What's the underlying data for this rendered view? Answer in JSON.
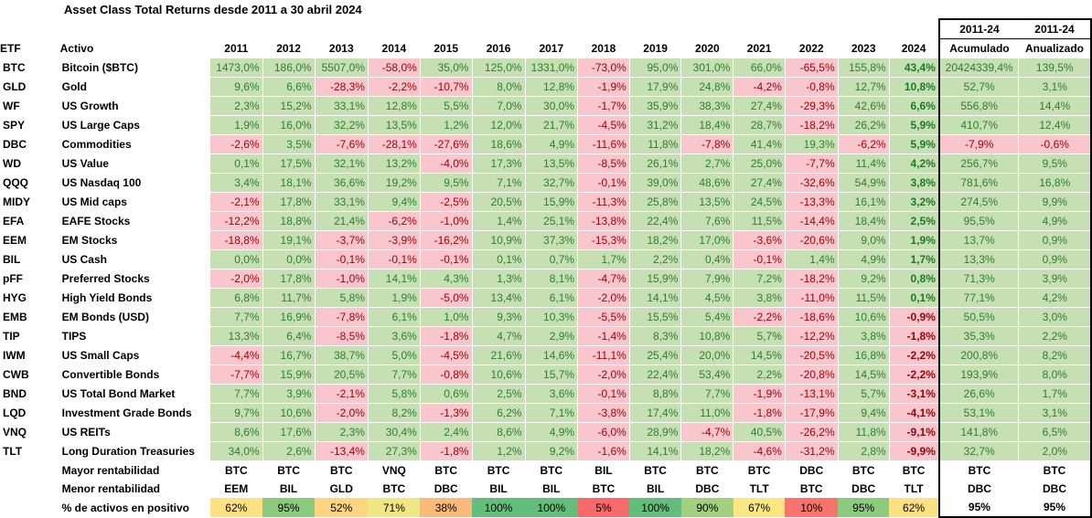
{
  "title": "Asset Class Total Returns desde 2011 a 30 abril 2024",
  "super_header": [
    "2011-24",
    "2011-24"
  ],
  "headers": {
    "etf": "ETF",
    "activo": "Activo",
    "years": [
      "2011",
      "2012",
      "2013",
      "2014",
      "2015",
      "2016",
      "2017",
      "2018",
      "2019",
      "2020",
      "2021",
      "2022",
      "2023",
      "2024"
    ],
    "acumulado": "Acumulado",
    "anualizado": "Anualizado"
  },
  "rows": [
    {
      "etf": "BTC",
      "name": "Bitcoin ($BTC)",
      "vals": [
        "1473,0%",
        "186,0%",
        "5507,0%",
        "-58,0%",
        "35,0%",
        "125,0%",
        "1331,0%",
        "-73,0%",
        "95,0%",
        "301,0%",
        "66,0%",
        "-65,5%",
        "155,8%",
        "43,4%"
      ],
      "cum": "20424339,4%",
      "ann": "139,5%"
    },
    {
      "etf": "GLD",
      "name": "Gold",
      "vals": [
        "9,6%",
        "6,6%",
        "-28,3%",
        "-2,2%",
        "-10,7%",
        "8,0%",
        "12,8%",
        "-1,9%",
        "17,9%",
        "24,8%",
        "-4,2%",
        "-0,8%",
        "12,7%",
        "10,8%"
      ],
      "cum": "52,7%",
      "ann": "3,1%"
    },
    {
      "etf": "WF",
      "name": "US Growth",
      "vals": [
        "2,3%",
        "15,2%",
        "33,1%",
        "12,8%",
        "5,5%",
        "7,0%",
        "30,0%",
        "-1,7%",
        "35,9%",
        "38,3%",
        "27,4%",
        "-29,3%",
        "42,6%",
        "6,6%"
      ],
      "cum": "556,8%",
      "ann": "14,4%"
    },
    {
      "etf": "SPY",
      "name": "US Large Caps",
      "vals": [
        "1,9%",
        "16,0%",
        "32,2%",
        "13,5%",
        "1,2%",
        "12,0%",
        "21,7%",
        "-4,5%",
        "31,2%",
        "18,4%",
        "28,7%",
        "-18,2%",
        "26,2%",
        "5,9%"
      ],
      "cum": "410,7%",
      "ann": "12,4%"
    },
    {
      "etf": "DBC",
      "name": "Commodities",
      "vals": [
        "-2,6%",
        "3,5%",
        "-7,6%",
        "-28,1%",
        "-27,6%",
        "18,6%",
        "4,9%",
        "-11,6%",
        "11,8%",
        "-7,8%",
        "41,4%",
        "19,3%",
        "-6,2%",
        "5,9%"
      ],
      "cum": "-7,9%",
      "ann": "-0,6%"
    },
    {
      "etf": "WD",
      "name": "US Value",
      "vals": [
        "0,1%",
        "17,5%",
        "32,1%",
        "13,2%",
        "-4,0%",
        "17,3%",
        "13,5%",
        "-8,5%",
        "26,1%",
        "2,7%",
        "25,0%",
        "-7,7%",
        "11,4%",
        "4,2%"
      ],
      "cum": "256,7%",
      "ann": "9,5%"
    },
    {
      "etf": "QQQ",
      "name": "US Nasdaq 100",
      "vals": [
        "3,4%",
        "18,1%",
        "36,6%",
        "19,2%",
        "9,5%",
        "7,1%",
        "32,7%",
        "-0,1%",
        "39,0%",
        "48,6%",
        "27,4%",
        "-32,6%",
        "54,9%",
        "3,8%"
      ],
      "cum": "781,6%",
      "ann": "16,8%"
    },
    {
      "etf": "MIDY",
      "name": "US Mid caps",
      "vals": [
        "-2,1%",
        "17,8%",
        "33,1%",
        "9,4%",
        "-2,5%",
        "20,5%",
        "15,9%",
        "-11,3%",
        "25,8%",
        "13,5%",
        "24,5%",
        "-13,3%",
        "16,1%",
        "3,2%"
      ],
      "cum": "274,5%",
      "ann": "9,9%"
    },
    {
      "etf": "EFA",
      "name": "EAFE Stocks",
      "vals": [
        "-12,2%",
        "18,8%",
        "21,4%",
        "-6,2%",
        "-1,0%",
        "1,4%",
        "25,1%",
        "-13,8%",
        "22,4%",
        "7,6%",
        "11,5%",
        "-14,4%",
        "18,4%",
        "2,5%"
      ],
      "cum": "95,5%",
      "ann": "4,9%"
    },
    {
      "etf": "EEM",
      "name": "EM Stocks",
      "vals": [
        "-18,8%",
        "19,1%",
        "-3,7%",
        "-3,9%",
        "-16,2%",
        "10,9%",
        "37,3%",
        "-15,3%",
        "18,2%",
        "17,0%",
        "-3,6%",
        "-20,6%",
        "9,0%",
        "1,9%"
      ],
      "cum": "13,7%",
      "ann": "0,9%"
    },
    {
      "etf": "BIL",
      "name": "US Cash",
      "vals": [
        "0,0%",
        "0,0%",
        "-0,1%",
        "-0,1%",
        "-0,1%",
        "0,1%",
        "0,7%",
        "1,7%",
        "2,2%",
        "0,4%",
        "-0,1%",
        "1,4%",
        "4,9%",
        "1,7%"
      ],
      "cum": "13,3%",
      "ann": "0,9%"
    },
    {
      "etf": "pFF",
      "name": "Preferred Stocks",
      "vals": [
        "-2,0%",
        "17,8%",
        "-1,0%",
        "14,1%",
        "4,3%",
        "1,3%",
        "8,1%",
        "-4,7%",
        "15,9%",
        "7,9%",
        "7,2%",
        "-18,2%",
        "9,2%",
        "0,8%"
      ],
      "cum": "71,3%",
      "ann": "3,9%"
    },
    {
      "etf": "HYG",
      "name": "High Yield Bonds",
      "vals": [
        "6,8%",
        "11,7%",
        "5,8%",
        "1,9%",
        "-5,0%",
        "13,4%",
        "6,1%",
        "-2,0%",
        "14,1%",
        "4,5%",
        "3,8%",
        "-11,0%",
        "11,5%",
        "0,1%"
      ],
      "cum": "77,1%",
      "ann": "4,2%"
    },
    {
      "etf": "EMB",
      "name": "EM Bonds (USD)",
      "vals": [
        "7,7%",
        "16,9%",
        "-7,8%",
        "6,1%",
        "1,0%",
        "9,3%",
        "10,3%",
        "-5,5%",
        "15,5%",
        "5,4%",
        "-2,2%",
        "-18,6%",
        "10,6%",
        "-0,9%"
      ],
      "cum": "50,5%",
      "ann": "3,0%"
    },
    {
      "etf": "TIP",
      "name": "TIPS",
      "vals": [
        "13,3%",
        "6,4%",
        "-8,5%",
        "3,6%",
        "-1,8%",
        "4,7%",
        "2,9%",
        "-1,4%",
        "8,3%",
        "10,8%",
        "5,7%",
        "-12,2%",
        "3,8%",
        "-1,8%"
      ],
      "cum": "35,3%",
      "ann": "2,2%"
    },
    {
      "etf": "IWM",
      "name": "US Small Caps",
      "vals": [
        "-4,4%",
        "16,7%",
        "38,7%",
        "5,0%",
        "-4,5%",
        "21,6%",
        "14,6%",
        "-11,1%",
        "25,4%",
        "20,0%",
        "14,5%",
        "-20,5%",
        "16,8%",
        "-2,2%"
      ],
      "cum": "200,8%",
      "ann": "8,2%"
    },
    {
      "etf": "CWB",
      "name": "Convertible Bonds",
      "vals": [
        "-7,7%",
        "15,9%",
        "20,5%",
        "7,7%",
        "-0,8%",
        "10,6%",
        "15,7%",
        "-2,0%",
        "22,4%",
        "53,4%",
        "2,2%",
        "-20,8%",
        "14,5%",
        "-2,2%"
      ],
      "cum": "193,9%",
      "ann": "8,0%"
    },
    {
      "etf": "BND",
      "name": "US Total Bond Market",
      "vals": [
        "7,7%",
        "3,9%",
        "-2,1%",
        "5,8%",
        "0,6%",
        "2,5%",
        "3,6%",
        "-0,1%",
        "8,8%",
        "7,7%",
        "-1,9%",
        "-13,1%",
        "5,7%",
        "-3,1%"
      ],
      "cum": "26,6%",
      "ann": "1,7%"
    },
    {
      "etf": "LQD",
      "name": "Investment Grade Bonds",
      "vals": [
        "9,7%",
        "10,6%",
        "-2,0%",
        "8,2%",
        "-1,3%",
        "6,2%",
        "7,1%",
        "-3,8%",
        "17,4%",
        "11,0%",
        "-1,8%",
        "-17,9%",
        "9,4%",
        "-4,1%"
      ],
      "cum": "53,1%",
      "ann": "3,1%"
    },
    {
      "etf": "VNQ",
      "name": "US REITs",
      "vals": [
        "8,6%",
        "17,6%",
        "2,3%",
        "30,4%",
        "2,4%",
        "8,6%",
        "4,9%",
        "-6,0%",
        "28,9%",
        "-4,7%",
        "40,5%",
        "-26,2%",
        "11,8%",
        "-9,1%"
      ],
      "cum": "141,8%",
      "ann": "6,5%"
    },
    {
      "etf": "TLT",
      "name": "Long Duration Treasuries",
      "vals": [
        "34,0%",
        "2,6%",
        "-13,4%",
        "27,3%",
        "-1,8%",
        "1,2%",
        "9,2%",
        "-1,6%",
        "14,1%",
        "18,2%",
        "-4,6%",
        "-31,2%",
        "2,8%",
        "-9,9%"
      ],
      "cum": "32,7%",
      "ann": "2,0%"
    }
  ],
  "footer": {
    "mayor": {
      "label": "Mayor rentabilidad",
      "vals": [
        "BTC",
        "BTC",
        "BTC",
        "VNQ",
        "BTC",
        "BTC",
        "BTC",
        "BIL",
        "BTC",
        "BTC",
        "BTC",
        "DBC",
        "BTC",
        "BTC"
      ],
      "cum": "BTC",
      "ann": "BTC"
    },
    "menor": {
      "label": "Menor rentabilidad",
      "vals": [
        "EEM",
        "BIL",
        "GLD",
        "BTC",
        "DBC",
        "BIL",
        "BIL",
        "BTC",
        "BIL",
        "DBC",
        "TLT",
        "BTC",
        "DBC",
        "TLT"
      ],
      "cum": "DBC",
      "ann": "DBC"
    },
    "pct": {
      "label": "% de activos en positivo",
      "vals": [
        "62%",
        "95%",
        "52%",
        "71%",
        "38%",
        "100%",
        "100%",
        "5%",
        "100%",
        "90%",
        "67%",
        "10%",
        "95%",
        "62%"
      ],
      "cum": "95%",
      "ann": "95%"
    }
  },
  "colors": {
    "pos_bg": "#c6e0b4",
    "pos_fg": "#2e7d32",
    "neg_bg": "#f8c6cc",
    "neg_fg": "#9c0006",
    "pct_scale": {
      "5%": "#f8696b",
      "10%": "#f8746c",
      "38%": "#fbba7a",
      "52%": "#ffd57f",
      "62%": "#fee182",
      "67%": "#fde783",
      "71%": "#eee784",
      "90%": "#a2d07f",
      "95%": "#8ccb7d",
      "100%": "#63be7b"
    }
  }
}
